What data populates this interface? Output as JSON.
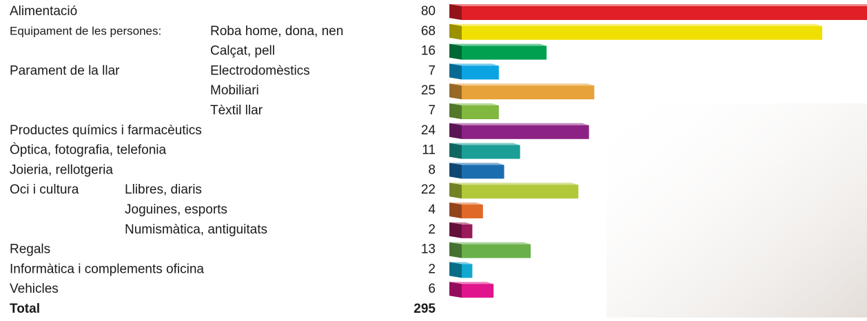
{
  "chart_data": {
    "type": "bar",
    "orientation": "horizontal",
    "groups": [
      "Alimentació",
      "Equipament de les persones:",
      null,
      "Parament de la llar",
      null,
      null,
      "Productes químics i farmacèutics",
      "Òptica, fotografia, telefonia",
      "Joieria, rellotgeria",
      "Oci i cultura",
      null,
      null,
      "Regals",
      "Informàtica i complements oficina",
      "Vehicles"
    ],
    "categories": [
      null,
      "Roba home, dona, nen",
      "Calçat, pell",
      "Electrodomèstics",
      "Mobiliari",
      "Tèxtil llar",
      null,
      null,
      null,
      "Llibres, diaris",
      "Joguines, esports",
      "Numismàtica, antiguitats",
      null,
      null,
      null
    ],
    "values": [
      80,
      68,
      16,
      7,
      25,
      7,
      24,
      11,
      8,
      22,
      4,
      2,
      13,
      2,
      6
    ],
    "colors": [
      "#e01f26",
      "#f0e000",
      "#00a050",
      "#0ba4e2",
      "#e8a23a",
      "#80b840",
      "#8c2283",
      "#1a9e96",
      "#1a6eb0",
      "#b0c83a",
      "#e0692a",
      "#9a1a5a",
      "#6ab04a",
      "#10a8d0",
      "#e0148c"
    ],
    "xlim": [
      0,
      78
    ],
    "total_label": "Total",
    "total": 295
  }
}
